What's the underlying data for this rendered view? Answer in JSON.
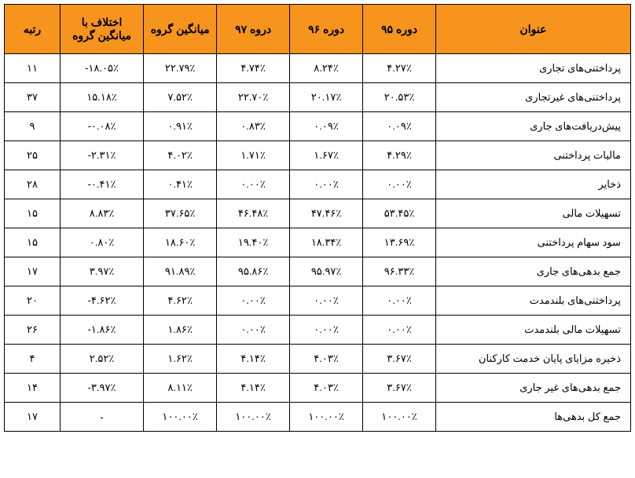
{
  "table": {
    "header_bg": "#f7941e",
    "border_color": "#000000",
    "columns": [
      "عنوان",
      "دوره ۹۵",
      "دوره ۹۶",
      "دروه ۹۷",
      "میانگین گروه",
      "اختلاف با میانگین گروه",
      "رتبه"
    ],
    "rows": [
      {
        "title": "پرداختنی‌های تجاری",
        "p95": "۴.۲۷٪",
        "p96": "۸.۲۴٪",
        "p97": "۴.۷۴٪",
        "avg": "۲۲.۷۹٪",
        "diff": "-۱۸.۰۵٪",
        "rank": "۱۱"
      },
      {
        "title": "پرداختنی‌های غیرتجاری",
        "p95": "۲۰.۵۳٪",
        "p96": "۲۰.۱۷٪",
        "p97": "۲۲.۷۰٪",
        "avg": "۷.۵۲٪",
        "diff": "۱۵.۱۸٪",
        "rank": "۳۷"
      },
      {
        "title": "پیش‌دریافت‌های جاری",
        "p95": "۰.۰۹٪",
        "p96": "۰.۰۹٪",
        "p97": "۰.۸۳٪",
        "avg": "۰.۹۱٪",
        "diff": "-۰.۰۸٪",
        "rank": "۹"
      },
      {
        "title": "مالیات پرداختنی",
        "p95": "۴.۲۹٪",
        "p96": "۱.۶۷٪",
        "p97": "۱.۷۱٪",
        "avg": "۴.۰۲٪",
        "diff": "-۲.۳۱٪",
        "rank": "۲۵"
      },
      {
        "title": "ذخایر",
        "p95": "۰.۰۰٪",
        "p96": "۰.۰۰٪",
        "p97": "۰.۰۰٪",
        "avg": "۰.۴۱٪",
        "diff": "-۰.۴۱٪",
        "rank": "۲۸"
      },
      {
        "title": "تسهیلات مالی",
        "p95": "۵۳.۴۵٪",
        "p96": "۴۷.۴۶٪",
        "p97": "۴۶.۴۸٪",
        "avg": "۳۷.۶۵٪",
        "diff": "۸.۸۳٪",
        "rank": "۱۵"
      },
      {
        "title": "سود سهام پرداختنی",
        "p95": "۱۳.۶۹٪",
        "p96": "۱۸.۳۴٪",
        "p97": "۱۹.۴۰٪",
        "avg": "۱۸.۶۰٪",
        "diff": "۰.۸۰٪",
        "rank": "۱۵"
      },
      {
        "title": "جمع بدهی‌های جاری",
        "p95": "۹۶.۳۳٪",
        "p96": "۹۵.۹۷٪",
        "p97": "۹۵.۸۶٪",
        "avg": "۹۱.۸۹٪",
        "diff": "۳.۹۷٪",
        "rank": "۱۷"
      },
      {
        "title": "پرداختنی‌های بلندمدت",
        "p95": "۰.۰۰٪",
        "p96": "۰.۰۰٪",
        "p97": "۰.۰۰٪",
        "avg": "۴.۶۲٪",
        "diff": "-۴.۶۲٪",
        "rank": "۲۰"
      },
      {
        "title": "تسهیلات مالی بلندمدت",
        "p95": "۰.۰۰٪",
        "p96": "۰.۰۰٪",
        "p97": "۰.۰۰٪",
        "avg": "۱.۸۶٪",
        "diff": "-۱.۸۶٪",
        "rank": "۲۶"
      },
      {
        "title": "ذخیره مزایای پایان خدمت کارکنان",
        "p95": "۳.۶۷٪",
        "p96": "۴.۰۳٪",
        "p97": "۴.۱۴٪",
        "avg": "۱.۶۲٪",
        "diff": "۲.۵۲٪",
        "rank": "۴"
      },
      {
        "title": "جمع بدهی‌های غیر جاری",
        "p95": "۳.۶۷٪",
        "p96": "۴.۰۳٪",
        "p97": "۴.۱۴٪",
        "avg": "۸.۱۱٪",
        "diff": "-۳.۹۷٪",
        "rank": "۱۴"
      },
      {
        "title": "جمع کل بدهی‌ها",
        "p95": "۱۰۰.۰۰٪",
        "p96": "۱۰۰.۰۰٪",
        "p97": "۱۰۰.۰۰٪",
        "avg": "۱۰۰.۰۰٪",
        "diff": "-",
        "rank": "۱۷"
      }
    ]
  }
}
